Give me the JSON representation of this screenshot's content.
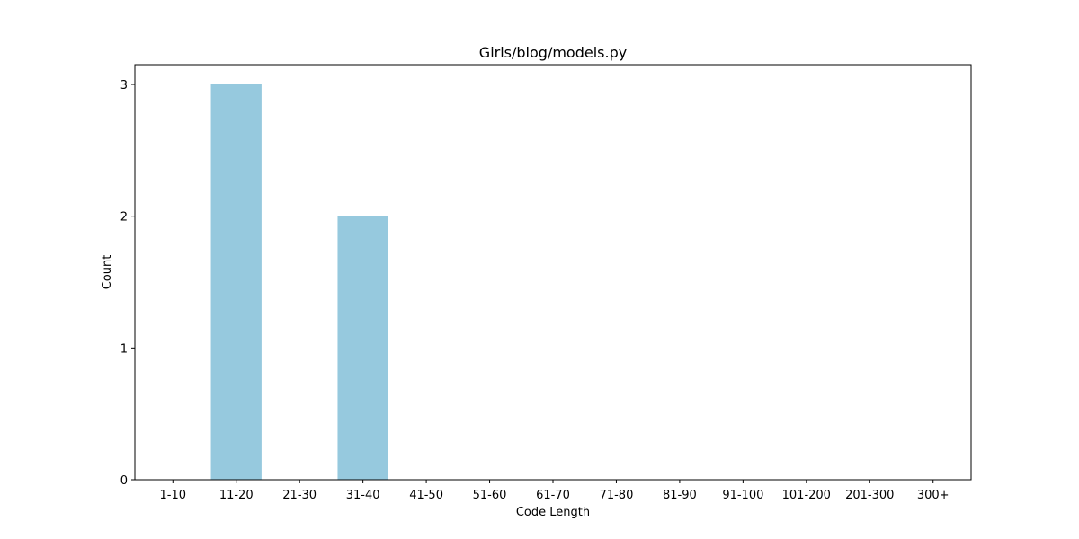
{
  "chart_data": {
    "type": "bar",
    "title": "Girls/blog/models.py",
    "xlabel": "Code Length",
    "ylabel": "Count",
    "categories": [
      "1-10",
      "11-20",
      "21-30",
      "31-40",
      "41-50",
      "51-60",
      "61-70",
      "71-80",
      "81-90",
      "91-100",
      "101-200",
      "201-300",
      "300+"
    ],
    "values": [
      0,
      3,
      0,
      2,
      0,
      0,
      0,
      0,
      0,
      0,
      0,
      0,
      0
    ],
    "ylim": [
      0,
      3.15
    ],
    "yticks": [
      0,
      1,
      2,
      3
    ],
    "bar_color": "#96c9de",
    "grid": false,
    "legend": "none"
  }
}
